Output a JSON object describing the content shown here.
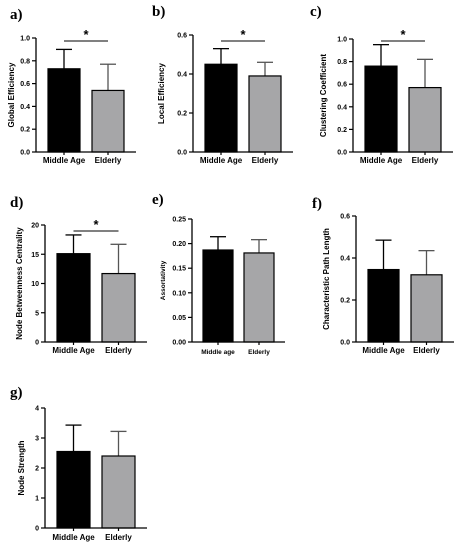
{
  "chart_data": [
    {
      "panel": "a)",
      "type": "bar",
      "categories": [
        "Middle Age",
        "Elderly"
      ],
      "values": [
        0.73,
        0.54
      ],
      "errors": [
        0.17,
        0.23
      ],
      "colors": [
        "#000000",
        "#a6a6a8"
      ],
      "ylabel": "Global Efficiency",
      "ylim": [
        0,
        1.0
      ],
      "yticks": [
        "0.0",
        "0.2",
        "0.4",
        "0.6",
        "0.8",
        "1.0"
      ],
      "significance": "*"
    },
    {
      "panel": "b)",
      "type": "bar",
      "categories": [
        "Middle Age",
        "Elderly"
      ],
      "values": [
        0.45,
        0.39
      ],
      "errors": [
        0.08,
        0.07
      ],
      "colors": [
        "#000000",
        "#a6a6a8"
      ],
      "ylabel": "Local Efficiency",
      "ylim": [
        0,
        0.6
      ],
      "yticks": [
        "0.0",
        "0.2",
        "0.4",
        "0.6"
      ],
      "significance": "*"
    },
    {
      "panel": "c)",
      "type": "bar",
      "categories": [
        "Middle Age",
        "Elderly"
      ],
      "values": [
        0.76,
        0.57
      ],
      "errors": [
        0.19,
        0.25
      ],
      "colors": [
        "#000000",
        "#a6a6a8"
      ],
      "ylabel": "Clustering Coefficient",
      "ylim": [
        0,
        1.0
      ],
      "yticks": [
        "0.0",
        "0.2",
        "0.4",
        "0.6",
        "0.8",
        "1.0"
      ],
      "significance": "*"
    },
    {
      "panel": "d)",
      "type": "bar",
      "categories": [
        "Middle Age",
        "Elderly"
      ],
      "values": [
        15.1,
        11.7
      ],
      "errors": [
        3.2,
        5.0
      ],
      "colors": [
        "#000000",
        "#a6a6a8"
      ],
      "ylabel": "Node Betweenness Centrality",
      "ylim": [
        0,
        20
      ],
      "yticks": [
        "0",
        "5",
        "10",
        "15",
        "20"
      ],
      "significance": "*"
    },
    {
      "panel": "e)",
      "type": "bar",
      "categories": [
        "Middle age",
        "Elderly"
      ],
      "values": [
        0.187,
        0.181
      ],
      "errors": [
        0.027,
        0.027
      ],
      "colors": [
        "#000000",
        "#a6a6a8"
      ],
      "ylabel": "Assortativity",
      "ylim": [
        0,
        0.25
      ],
      "yticks": [
        "0.00",
        "0.05",
        "0.10",
        "0.15",
        "0.20",
        "0.25"
      ],
      "significance": ""
    },
    {
      "panel": "f)",
      "type": "bar",
      "categories": [
        "Middle Age",
        "Elderly"
      ],
      "values": [
        0.345,
        0.32
      ],
      "errors": [
        0.14,
        0.115
      ],
      "colors": [
        "#000000",
        "#a6a6a8"
      ],
      "ylabel": "Characteristic Path Length",
      "ylim": [
        0,
        0.6
      ],
      "yticks": [
        "0.0",
        "0.2",
        "0.4",
        "0.6"
      ],
      "significance": ""
    },
    {
      "panel": "g)",
      "type": "bar",
      "categories": [
        "Middle Age",
        "Elderly"
      ],
      "values": [
        2.55,
        2.4
      ],
      "errors": [
        0.88,
        0.82
      ],
      "colors": [
        "#000000",
        "#a6a6a8"
      ],
      "ylabel": "Node Strength",
      "ylim": [
        0,
        4
      ],
      "yticks": [
        "0",
        "1",
        "2",
        "3",
        "4"
      ],
      "significance": ""
    }
  ]
}
